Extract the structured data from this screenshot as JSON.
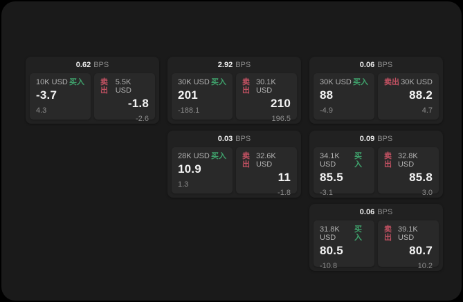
{
  "app": {
    "unit_label": "BPS",
    "buy_label": "买入",
    "sell_label": "卖出"
  },
  "colors": {
    "background": "#000000",
    "panel": "#1a1a1a",
    "card": "#212121",
    "tile": "#292929",
    "buy": "#3fa26c",
    "sell": "#c25162",
    "label": "#b3b3b3",
    "muted": "#8d8d8d"
  },
  "cards": [
    {
      "bps": "0.62",
      "buy": {
        "amount": "10K USD",
        "value": "-3.7",
        "change": "4.3"
      },
      "sell": {
        "amount": "5.5K USD",
        "value": "-1.8",
        "change": "-2.6"
      }
    },
    {
      "bps": "2.92",
      "buy": {
        "amount": "30K USD",
        "value": "201",
        "change": "-188.1"
      },
      "sell": {
        "amount": "30.1K USD",
        "value": "210",
        "change": "196.5"
      }
    },
    {
      "bps": "0.06",
      "buy": {
        "amount": "30K USD",
        "value": "88",
        "change": "-4.9"
      },
      "sell": {
        "amount": "30K USD",
        "value": "88.2",
        "change": "4.7"
      }
    },
    {
      "bps": "0.03",
      "buy": {
        "amount": "28K USD",
        "value": "10.9",
        "change": "1.3"
      },
      "sell": {
        "amount": "32.6K USD",
        "value": "11",
        "change": "-1.8"
      }
    },
    {
      "bps": "0.09",
      "buy": {
        "amount": "34.1K USD",
        "value": "85.5",
        "change": "-3.1"
      },
      "sell": {
        "amount": "32.8K USD",
        "value": "85.8",
        "change": "3.0"
      }
    },
    {
      "bps": "0.06",
      "buy": {
        "amount": "31.8K USD",
        "value": "80.5",
        "change": "-10.8"
      },
      "sell": {
        "amount": "39.1K USD",
        "value": "80.7",
        "change": "10.2"
      }
    }
  ]
}
